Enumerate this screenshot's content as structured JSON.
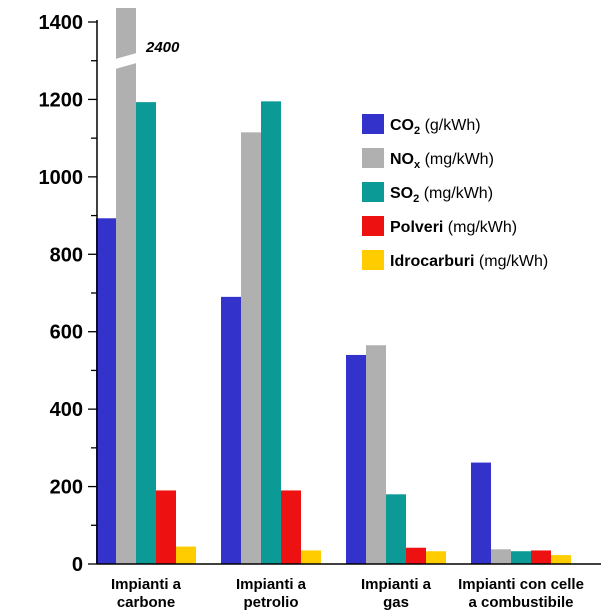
{
  "chart_data": {
    "type": "bar",
    "title": "",
    "xlabel": "",
    "ylabel": "",
    "ylim": [
      0,
      1400
    ],
    "yticks": [
      0,
      200,
      400,
      600,
      800,
      1000,
      1200,
      1400
    ],
    "categories": [
      [
        "Impianti a",
        "carbone"
      ],
      [
        "Impianti a",
        "petrolio"
      ],
      [
        "Impianti a",
        "gas"
      ],
      [
        "Impianti con celle",
        "a combustibile"
      ]
    ],
    "series": [
      {
        "name": "CO",
        "sub": "2",
        "unit": "(g/kWh)",
        "color": "#3333cc",
        "values": [
          893,
          690,
          540,
          262
        ]
      },
      {
        "name": "NO",
        "sub": "x",
        "unit": "(mg/kWh)",
        "color": "#b0b0b0",
        "values": [
          2400,
          1115,
          565,
          38
        ]
      },
      {
        "name": "SO",
        "sub": "2",
        "unit": "(mg/kWh)",
        "color": "#0b9a96",
        "values": [
          1193,
          1195,
          180,
          33
        ]
      },
      {
        "name": "Polveri",
        "sub": "",
        "unit": "(mg/kWh)",
        "color": "#ee1111",
        "values": [
          190,
          190,
          42,
          35
        ]
      },
      {
        "name": "Idrocarburi",
        "sub": "",
        "unit": "(mg/kWh)",
        "color": "#ffcc00",
        "values": [
          45,
          35,
          33,
          23
        ]
      }
    ],
    "axis_break": {
      "series": 1,
      "category": 0,
      "label": "2400"
    },
    "legend_position": "right",
    "grid": false
  }
}
